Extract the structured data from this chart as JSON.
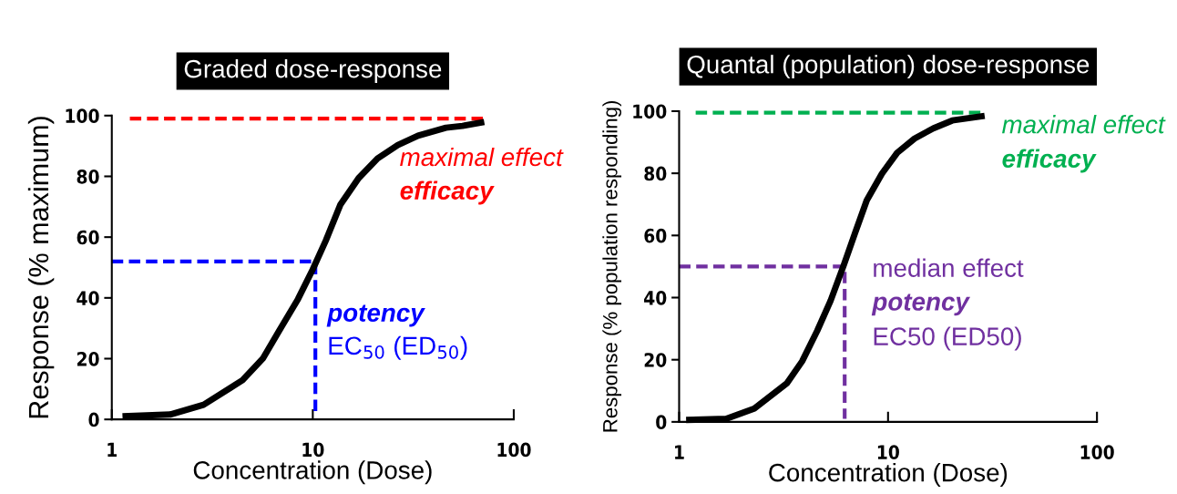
{
  "chart_data": [
    {
      "type": "line",
      "title": "Graded dose-response",
      "xlabel": "Concentration (Dose)",
      "ylabel": "Response (% maximum)",
      "log": "x",
      "xlim": [
        1,
        100
      ],
      "xticks": [
        1,
        10,
        100
      ],
      "ylim": [
        0,
        100
      ],
      "yticks": [
        0,
        20,
        40,
        60,
        80,
        100
      ],
      "grid": false,
      "legend": false,
      "marker": "none",
      "series": [
        {
          "color": "#000000",
          "line_style": "solid",
          "x": [
            1.13,
            1.95,
            2.86,
            4.47,
            5.64,
            6.83,
            8.44,
            10,
            11.6,
            13.7,
            16.9,
            21.0,
            26.5,
            33.4,
            46.0,
            55.6,
            71.3
          ],
          "values": [
            1,
            1.6,
            4.8,
            12.9,
            20,
            29.4,
            39.6,
            49.4,
            58.8,
            70.6,
            79.4,
            85.9,
            90.3,
            93.4,
            96,
            96.6,
            97.9
          ]
        },
        {
          "color": "#ff0000",
          "line_style": "dashed",
          "x": [
            1.23,
            71
          ],
          "values": [
            99,
            99
          ]
        },
        {
          "color": "#0000ff",
          "line_style": "dashed",
          "x": [
            1,
            10.3,
            10.3
          ],
          "values": [
            52,
            52,
            2
          ]
        }
      ],
      "annotations": [
        "maximal effect",
        "efficacy",
        "potency",
        "EC$_{50}$ (ED$_{50}$)"
      ]
    },
    {
      "type": "line",
      "title": "Quantal (population) dose-response",
      "xlabel": "Concentration (Dose)",
      "ylabel": "Response (% population responding)",
      "log": "x",
      "xlim": [
        1,
        100
      ],
      "xticks": [
        1,
        10,
        100
      ],
      "ylim": [
        0,
        100
      ],
      "yticks": [
        0,
        20,
        40,
        60,
        80,
        100
      ],
      "grid": false,
      "legend": false,
      "marker": "none",
      "series": [
        {
          "color": "#000000",
          "line_style": "solid",
          "x": [
            1.08,
            1.68,
            2.29,
            3.28,
            3.88,
            4.58,
            5.31,
            6.15,
            6.97,
            7.91,
            9.35,
            11.06,
            13.4,
            16.5,
            20.3,
            29.0
          ],
          "values": [
            0.6,
            1,
            4.3,
            12.4,
            19.5,
            29.3,
            39,
            50.6,
            61,
            71.3,
            79.9,
            86.6,
            91.2,
            94.5,
            97,
            98.5
          ]
        },
        {
          "color": "#00b050",
          "line_style": "dashed",
          "x": [
            1.2,
            28.5
          ],
          "values": [
            99.5,
            99.5
          ]
        },
        {
          "color": "#7030a0",
          "line_style": "dashed",
          "x": [
            1,
            6.2,
            6.2
          ],
          "values": [
            50,
            50,
            1
          ]
        }
      ],
      "annotations": [
        "maximal effect",
        "efficacy",
        "median effect",
        "potency",
        "EC50 (ED50)"
      ]
    }
  ]
}
